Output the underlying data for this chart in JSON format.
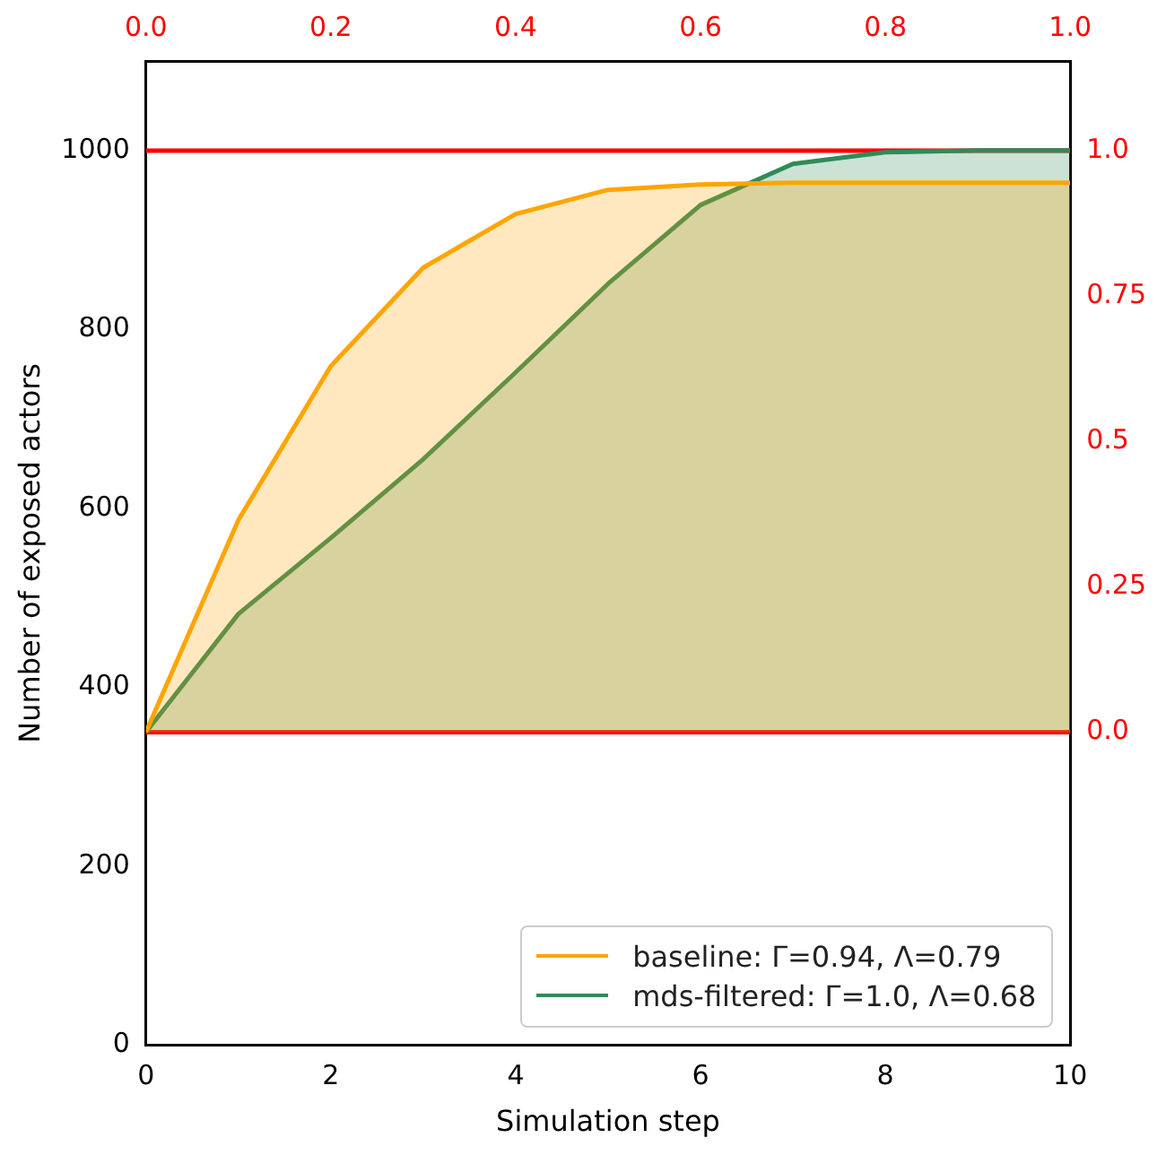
{
  "chart_data": {
    "type": "area",
    "xlabel": "Simulation step",
    "ylabel": "Number of exposed actors",
    "x": [
      0,
      1,
      2,
      3,
      4,
      5,
      6,
      7,
      8,
      9,
      10
    ],
    "series": [
      {
        "name": "baseline: Γ=0.94, Λ=0.79",
        "color": "#ffa500",
        "values": [
          350,
          587,
          759,
          869,
          929,
          956,
          962,
          964,
          964,
          964,
          964
        ]
      },
      {
        "name": "mds-filtered: Γ=1.0, Λ=0.68",
        "color": "#2e8b57",
        "values": [
          350,
          482,
          567,
          655,
          752,
          851,
          939,
          985,
          998,
          1000,
          1000
        ]
      }
    ],
    "xlim": [
      0,
      10
    ],
    "xticks": [
      0,
      2,
      4,
      6,
      8,
      10
    ],
    "ylim": [
      0,
      1100
    ],
    "yticks": [
      0,
      200,
      400,
      600,
      800,
      1000
    ],
    "x2lim": [
      0,
      1
    ],
    "x2ticks": [
      {
        "value": 0,
        "label": "0.0"
      },
      {
        "value": 0.2,
        "label": "0.2"
      },
      {
        "value": 0.4,
        "label": "0.4"
      },
      {
        "value": 0.6,
        "label": "0.6"
      },
      {
        "value": 0.8,
        "label": "0.8"
      },
      {
        "value": 1,
        "label": "1.0"
      }
    ],
    "y2lim": [
      -0.538,
      1.154
    ],
    "y2ticks": [
      {
        "value": 0,
        "label": "0.0"
      },
      0.25,
      0.5,
      0.75,
      {
        "value": 1,
        "label": "1.0"
      }
    ],
    "ref_lines": [
      {
        "axis": "y2",
        "value": 0,
        "color": "#ff0000"
      },
      {
        "axis": "y2",
        "value": 1,
        "color": "#ff0000"
      }
    ],
    "grid": false,
    "legend": "bottom right"
  }
}
